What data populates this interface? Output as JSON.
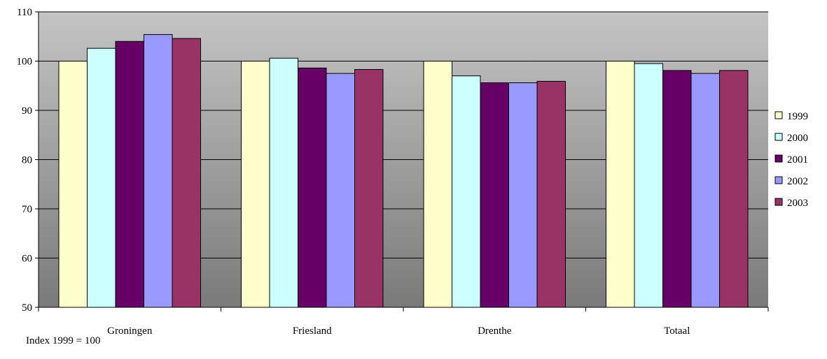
{
  "chart_data": {
    "type": "bar",
    "title": "",
    "xlabel": "",
    "ylabel": "",
    "categories": [
      "Groningen",
      "Friesland",
      "Drenthe",
      "Totaal"
    ],
    "series": [
      {
        "name": "1999",
        "values": [
          100,
          100,
          100,
          100
        ],
        "color": "#ffffcc"
      },
      {
        "name": "2000",
        "values": [
          102.6,
          100.6,
          97.0,
          99.5
        ],
        "color": "#ccffff"
      },
      {
        "name": "2001",
        "values": [
          104.0,
          98.6,
          95.6,
          98.1
        ],
        "color": "#660066"
      },
      {
        "name": "2002",
        "values": [
          105.4,
          97.5,
          95.6,
          97.5
        ],
        "color": "#9999ff"
      },
      {
        "name": "2003",
        "values": [
          104.6,
          98.3,
          95.9,
          98.1
        ],
        "color": "#993366"
      }
    ],
    "ylim": [
      50,
      110
    ],
    "yticks": [
      50,
      60,
      70,
      80,
      90,
      100,
      110
    ],
    "grid": true,
    "legend_position": "right",
    "plot_background": "gradient-gray",
    "note": "Index 1999 = 100"
  }
}
